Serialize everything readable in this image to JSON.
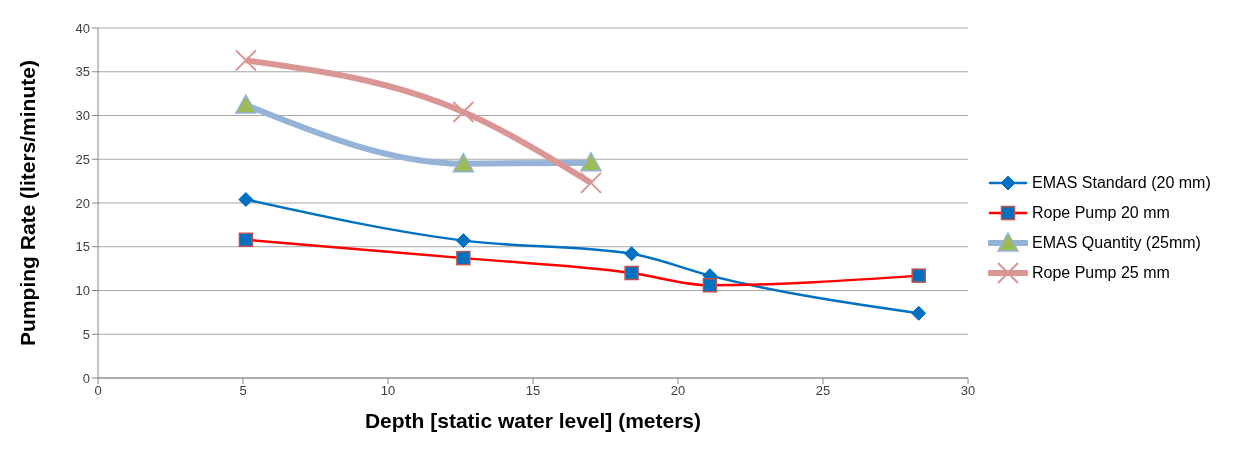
{
  "chart_data": {
    "type": "line",
    "xlabel": "Depth [static water level] (meters)",
    "ylabel": "Pumping Rate (liters/minute)",
    "xlim": [
      0,
      30
    ],
    "xticks": [
      0,
      5,
      10,
      15,
      20,
      25,
      30
    ],
    "ylim": [
      0,
      40
    ],
    "yticks": [
      0,
      5,
      10,
      15,
      20,
      25,
      30,
      35,
      40
    ],
    "grid": "y",
    "legend": "right",
    "line_style": "solid",
    "series": [
      {
        "name": "EMAS Standard (20 mm)",
        "color": "#0070c0",
        "marker": "diamond",
        "x": [
          5.1,
          12.6,
          18.4,
          21.1,
          28.3
        ],
        "values": [
          20.4,
          15.7,
          14.2,
          11.7,
          7.4
        ]
      },
      {
        "name": "Rope Pump 20 mm",
        "color": "#ff0000",
        "marker": "square",
        "x": [
          5.1,
          12.6,
          18.4,
          21.1,
          28.3
        ],
        "values": [
          15.8,
          13.7,
          12.0,
          10.6,
          11.7
        ]
      },
      {
        "name": "EMAS Quantity (25mm)",
        "color": "#95b3d7",
        "marker": "triangle",
        "x": [
          5.1,
          12.6,
          17.0
        ],
        "values": [
          31.2,
          24.5,
          24.6
        ]
      },
      {
        "name": "Rope Pump 25 mm",
        "color": "#d99694",
        "marker": "cross",
        "x": [
          5.1,
          12.6,
          17.0
        ],
        "values": [
          36.3,
          30.4,
          22.3
        ]
      }
    ]
  }
}
